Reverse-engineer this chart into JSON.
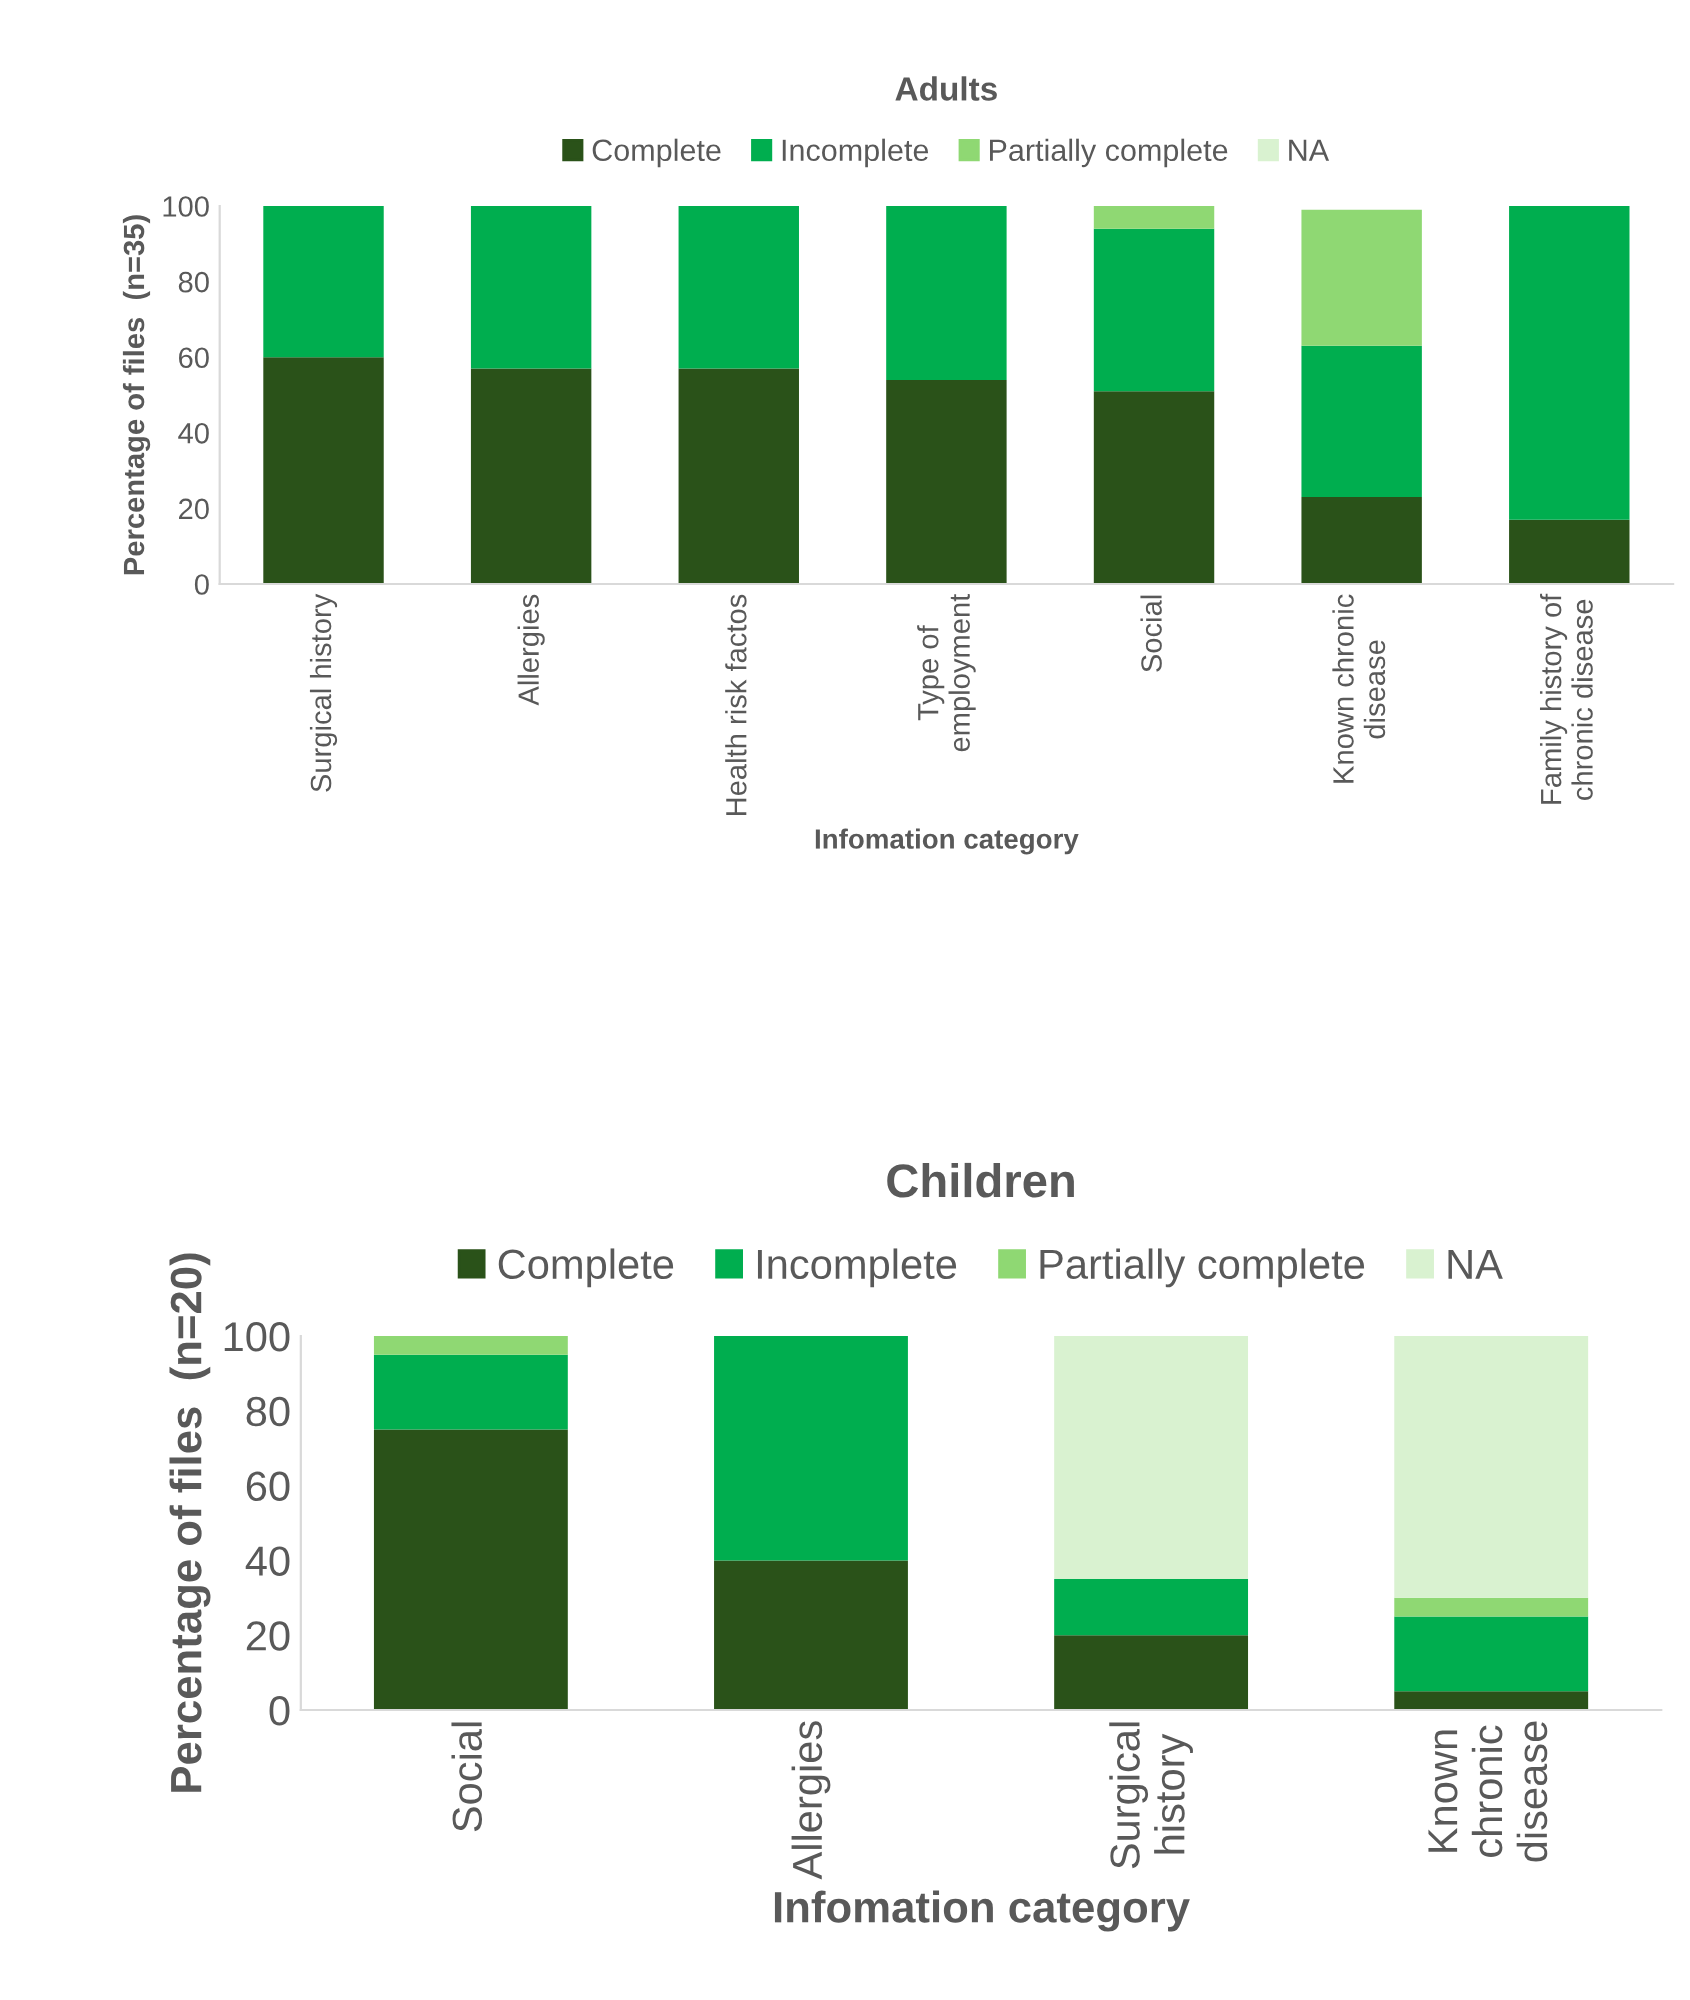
{
  "chart_data": [
    {
      "type": "bar",
      "title": "Adults",
      "xlabel": "Infomation category",
      "ylabel": "Percentage of files  (n=35)",
      "stacked": true,
      "legend": "top",
      "categories": [
        "Surgical history",
        "Allergies",
        "Health risk factos",
        "Type of\nemployment",
        "Social",
        "Known chronic\ndisease",
        "Family history of\nchronic disease"
      ],
      "series": [
        {
          "name": "Complete",
          "color": "#2a5219",
          "values": [
            60,
            57,
            57,
            54,
            51,
            23,
            17
          ]
        },
        {
          "name": "Incomplete",
          "color": "#00ae4f",
          "values": [
            40,
            43,
            43,
            46,
            43,
            40,
            83
          ]
        },
        {
          "name": "Partially complete",
          "color": "#8fd873",
          "values": [
            0,
            0,
            0,
            0,
            6,
            36,
            0
          ]
        },
        {
          "name": "NA",
          "color": "#d9f2d0",
          "values": [
            0,
            0,
            0,
            0,
            0,
            0,
            0
          ]
        }
      ],
      "ylim": [
        0,
        100
      ],
      "yticks": [
        0,
        20,
        40,
        60,
        80,
        100
      ]
    },
    {
      "type": "bar",
      "title": "Children",
      "xlabel": "Infomation category",
      "ylabel": "Percentage of files  (n=20)",
      "stacked": true,
      "legend": "top",
      "categories": [
        "Social",
        "Allergies",
        "Surgical\nhistory",
        "Known\nchronic\ndisease"
      ],
      "series": [
        {
          "name": "Complete",
          "color": "#2a5219",
          "values": [
            75,
            40,
            20,
            5
          ]
        },
        {
          "name": "Incomplete",
          "color": "#00ae4f",
          "values": [
            20,
            60,
            15,
            20
          ]
        },
        {
          "name": "Partially complete",
          "color": "#8fd873",
          "values": [
            5,
            0,
            0,
            5
          ]
        },
        {
          "name": "NA",
          "color": "#d9f2d0",
          "values": [
            0,
            0,
            65,
            70
          ]
        }
      ],
      "ylim": [
        0,
        100
      ],
      "yticks": [
        0,
        20,
        40,
        60,
        80,
        100
      ]
    }
  ]
}
